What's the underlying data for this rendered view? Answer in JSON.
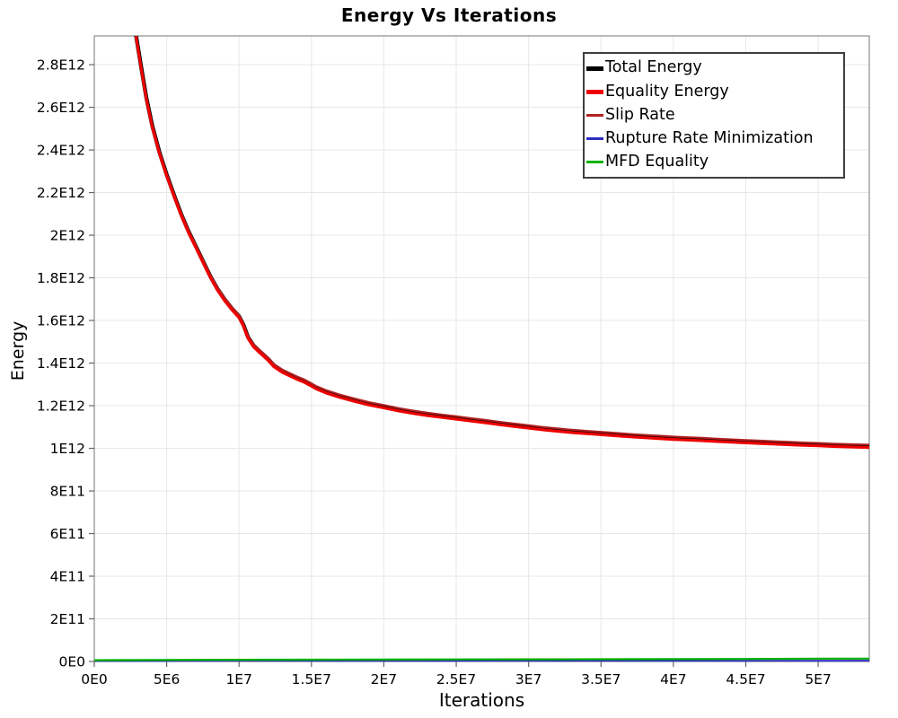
{
  "chart_data": {
    "type": "line",
    "title": "Energy Vs Iterations",
    "xlabel": "Iterations",
    "ylabel": "Energy",
    "xlim": [
      0,
      53530000.0
    ],
    "ylim": [
      0,
      2935000000000.0
    ],
    "grid": true,
    "x_tick_values": [
      0,
      5000000.0,
      10000000.0,
      15000000.0,
      20000000.0,
      25000000.0,
      30000000.0,
      35000000.0,
      40000000.0,
      45000000.0,
      50000000.0
    ],
    "x_tick_labels": [
      "0E0",
      "5E6",
      "1E7",
      "1.5E7",
      "2E7",
      "2.5E7",
      "3E7",
      "3.5E7",
      "4E7",
      "4.5E7",
      "5E7"
    ],
    "y_tick_values": [
      0,
      200000000000.0,
      400000000000.0,
      600000000000.0,
      800000000000.0,
      1000000000000.0,
      1200000000000.0,
      1400000000000.0,
      1600000000000.0,
      1800000000000.0,
      2000000000000.0,
      2200000000000.0,
      2400000000000.0,
      2600000000000.0,
      2800000000000.0
    ],
    "y_tick_labels": [
      "0E0",
      "2E11",
      "4E11",
      "6E11",
      "8E11",
      "1E12",
      "1.2E12",
      "1.4E12",
      "1.6E12",
      "1.8E12",
      "2E12",
      "2.2E12",
      "2.4E12",
      "2.6E12",
      "2.8E12"
    ],
    "colors": {
      "total_energy": "#000000",
      "equality_energy": "#EE0000",
      "slip_rate": "#B22222",
      "rupture_rate_minimization": "#2D2DC0",
      "mfd_equality": "#00B200",
      "gridline": "#E7E7E7",
      "frame": "#8C8C8C"
    },
    "series": [
      {
        "name": "Total Energy",
        "color": "#000000",
        "width": 4.4,
        "dy": -1.1,
        "points": "main"
      },
      {
        "name": "Slip Rate",
        "color": "#B22222",
        "width": 2.0,
        "dy": -2.7,
        "points": "main"
      },
      {
        "name": "Equality Energy",
        "color": "#EE0000",
        "width": 3.2,
        "dy": 0.5,
        "points": "main"
      },
      {
        "name": "Rupture Rate Minimization",
        "color": "#2D2DC0",
        "width": 2.0,
        "dy": 0,
        "points": "rupture"
      },
      {
        "name": "MFD Equality",
        "color": "#00B200",
        "width": 2.2,
        "dy": 0,
        "points": "mfd"
      }
    ],
    "points": {
      "main": [
        [
          2880000.0,
          2935000000000.0
        ],
        [
          3200000.0,
          2800000000000.0
        ],
        [
          3600000.0,
          2640000000000.0
        ],
        [
          4000000.0,
          2510000000000.0
        ],
        [
          4500000.0,
          2385000000000.0
        ],
        [
          5000000.0,
          2280000000000.0
        ],
        [
          5500000.0,
          2185000000000.0
        ],
        [
          6000000.0,
          2095000000000.0
        ],
        [
          6500000.0,
          2015000000000.0
        ],
        [
          7000000.0,
          1945000000000.0
        ],
        [
          7500000.0,
          1875000000000.0
        ],
        [
          8000000.0,
          1805000000000.0
        ],
        [
          8500000.0,
          1745000000000.0
        ],
        [
          9000000.0,
          1695000000000.0
        ],
        [
          9500000.0,
          1652000000000.0
        ],
        [
          10000000.0,
          1615000000000.0
        ],
        [
          10300000.0,
          1575000000000.0
        ],
        [
          10600000.0,
          1520000000000.0
        ],
        [
          11000000.0,
          1478000000000.0
        ],
        [
          11400000.0,
          1452000000000.0
        ],
        [
          12000000.0,
          1415000000000.0
        ],
        [
          12400000.0,
          1385000000000.0
        ],
        [
          13000000.0,
          1358000000000.0
        ],
        [
          13500000.0,
          1342000000000.0
        ],
        [
          14000000.0,
          1326000000000.0
        ],
        [
          14500000.0,
          1312000000000.0
        ],
        [
          14900000.0,
          1298000000000.0
        ],
        [
          15300000.0,
          1282000000000.0
        ],
        [
          16000000.0,
          1262000000000.0
        ],
        [
          17000000.0,
          1240000000000.0
        ],
        [
          18000000.0,
          1222000000000.0
        ],
        [
          19000000.0,
          1205000000000.0
        ],
        [
          20000000.0,
          1192000000000.0
        ],
        [
          21000000.0,
          1178000000000.0
        ],
        [
          22000000.0,
          1166000000000.0
        ],
        [
          23000000.0,
          1156000000000.0
        ],
        [
          24000000.0,
          1147000000000.0
        ],
        [
          25000000.0,
          1139000000000.0
        ],
        [
          26000000.0,
          1130000000000.0
        ],
        [
          27000000.0,
          1122000000000.0
        ],
        [
          28000000.0,
          1113000000000.0
        ],
        [
          29000000.0,
          1105000000000.0
        ],
        [
          30000000.0,
          1097000000000.0
        ],
        [
          31000000.0,
          1089000000000.0
        ],
        [
          32000000.0,
          1082000000000.0
        ],
        [
          33000000.0,
          1076000000000.0
        ],
        [
          34000000.0,
          1071000000000.0
        ],
        [
          35000000.0,
          1066000000000.0
        ],
        [
          36000000.0,
          1061000000000.0
        ],
        [
          37000000.0,
          1056000000000.0
        ],
        [
          38000000.0,
          1052000000000.0
        ],
        [
          39000000.0,
          1048000000000.0
        ],
        [
          40000000.0,
          1044000000000.0
        ],
        [
          41000000.0,
          1041000000000.0
        ],
        [
          42000000.0,
          1038000000000.0
        ],
        [
          43000000.0,
          1034000000000.0
        ],
        [
          44000000.0,
          1031000000000.0
        ],
        [
          45000000.0,
          1028000000000.0
        ],
        [
          46000000.0,
          1025000000000.0
        ],
        [
          47000000.0,
          1022000000000.0
        ],
        [
          48000000.0,
          1019000000000.0
        ],
        [
          49000000.0,
          1016000000000.0
        ],
        [
          50000000.0,
          1014000000000.0
        ],
        [
          51000000.0,
          1011000000000.0
        ],
        [
          52000000.0,
          1009000000000.0
        ],
        [
          53530000.0,
          1006000000000.0
        ]
      ],
      "rupture": [
        [
          0,
          2500000000.0
        ],
        [
          10000000.0,
          2800000000.0
        ],
        [
          20000000.0,
          3000000000.0
        ],
        [
          30000000.0,
          3200000000.0
        ],
        [
          40000000.0,
          3400000000.0
        ],
        [
          50000000.0,
          3500000000.0
        ],
        [
          53530000.0,
          3600000000.0
        ]
      ],
      "mfd": [
        [
          0,
          6000000000.0
        ],
        [
          5000000.0,
          7000000000.0
        ],
        [
          10000000.0,
          8000000000.0
        ],
        [
          15000000.0,
          8500000000.0
        ],
        [
          20000000.0,
          9000000000.0
        ],
        [
          25000000.0,
          9500000000.0
        ],
        [
          30000000.0,
          10000000000.0
        ],
        [
          35000000.0,
          10500000000.0
        ],
        [
          40000000.0,
          11000000000.0
        ],
        [
          45000000.0,
          12000000000.0
        ],
        [
          50000000.0,
          13000000000.0
        ],
        [
          53530000.0,
          13500000000.0
        ]
      ]
    },
    "legend": {
      "position": "top-right",
      "items": [
        {
          "label": "Total Energy",
          "color": "#000000",
          "thickness": 5
        },
        {
          "label": "Equality Energy",
          "color": "#EE0000",
          "thickness": 5
        },
        {
          "label": "Slip Rate",
          "color": "#B22222",
          "thickness": 3
        },
        {
          "label": "Rupture Rate Minimization",
          "color": "#2D2DC0",
          "thickness": 3
        },
        {
          "label": "MFD Equality",
          "color": "#00B200",
          "thickness": 3
        }
      ]
    }
  }
}
